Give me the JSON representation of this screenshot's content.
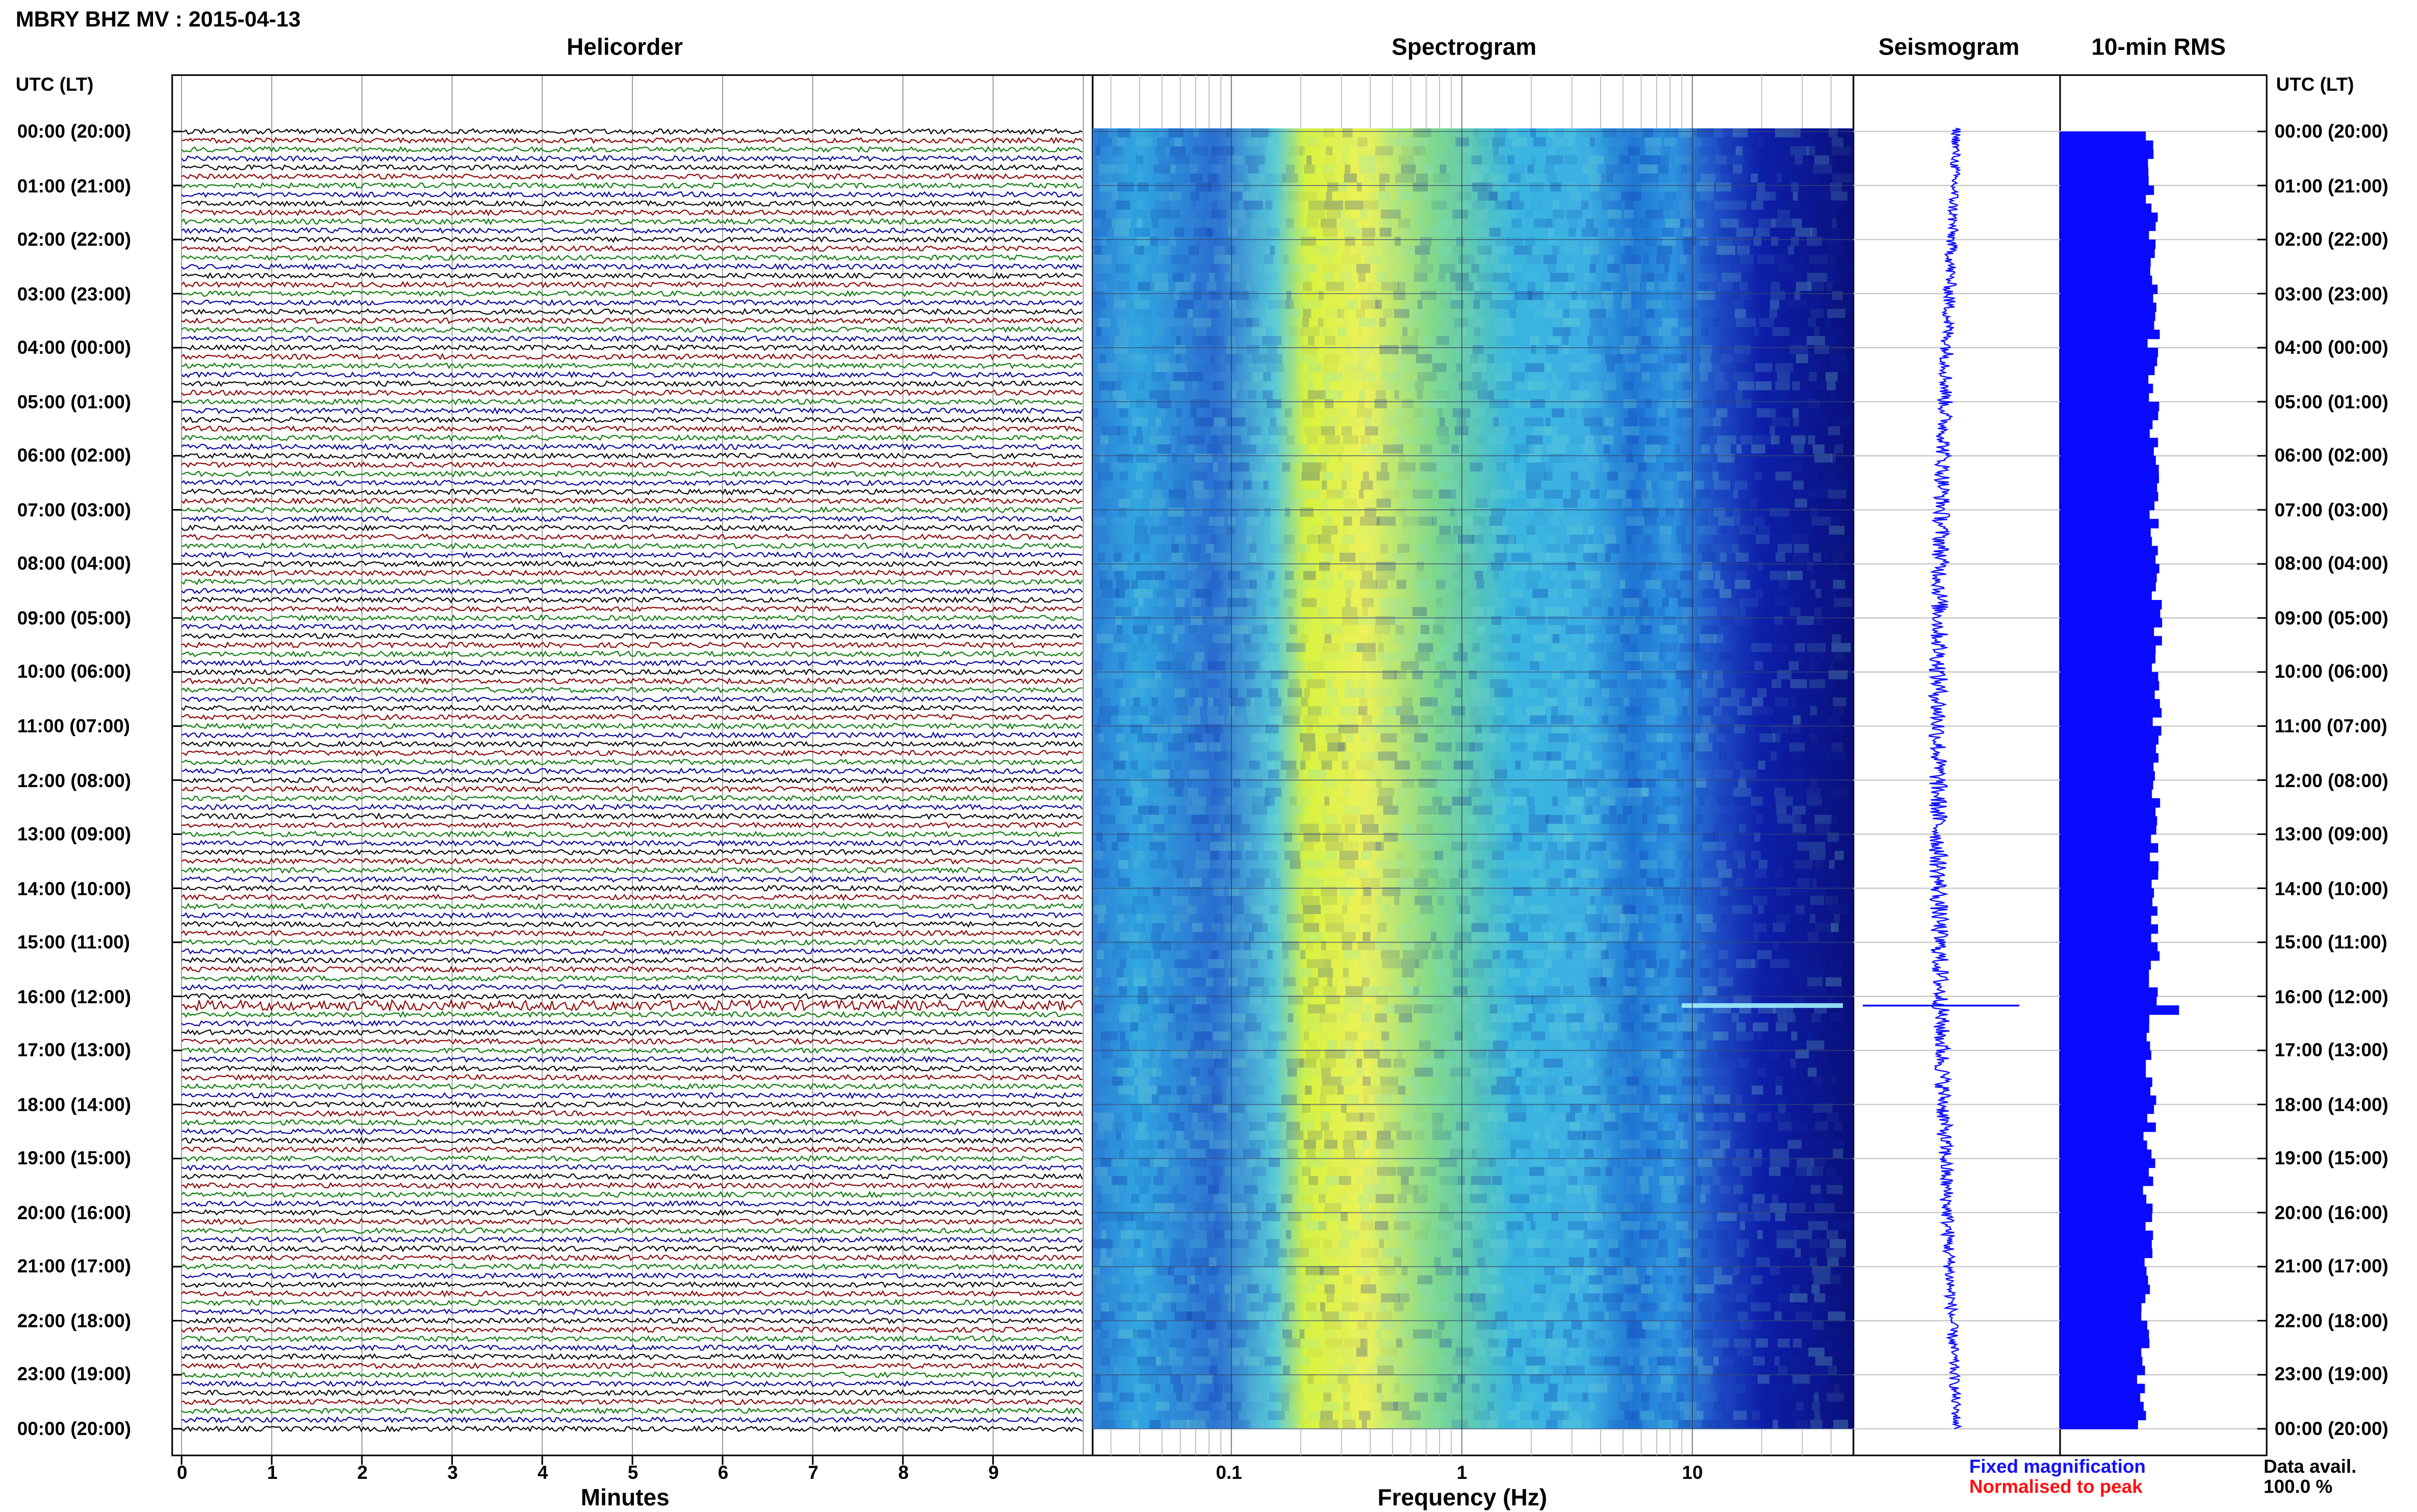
{
  "page": {
    "title": "MBRY BHZ MV : 2015-04-13",
    "utc_lt_label": "UTC (LT)"
  },
  "panels": {
    "helicorder": "Helicorder",
    "spectrogram": "Spectrogram",
    "seismogram": "Seismogram",
    "rms": "10-min RMS"
  },
  "axes": {
    "helicorder_xlabel": "Minutes",
    "spectrogram_xlabel": "Frequency (Hz)",
    "minute_ticks": [
      "0",
      "1",
      "2",
      "3",
      "4",
      "5",
      "6",
      "7",
      "8",
      "9"
    ],
    "frequency_ticks": [
      "0.1",
      "1",
      "10"
    ]
  },
  "time_labels": [
    "00:00 (20:00)",
    "01:00 (21:00)",
    "02:00 (22:00)",
    "03:00 (23:00)",
    "04:00 (00:00)",
    "05:00 (01:00)",
    "06:00 (02:00)",
    "07:00 (03:00)",
    "08:00 (04:00)",
    "09:00 (05:00)",
    "10:00 (06:00)",
    "11:00 (07:00)",
    "12:00 (08:00)",
    "13:00 (09:00)",
    "14:00 (10:00)",
    "15:00 (11:00)",
    "16:00 (12:00)",
    "17:00 (13:00)",
    "18:00 (14:00)",
    "19:00 (15:00)",
    "20:00 (16:00)",
    "21:00 (17:00)",
    "22:00 (18:00)",
    "23:00 (19:00)",
    "00:00 (20:00)"
  ],
  "legend": {
    "fixed": "Fixed magnification",
    "normalised": "Normalised to peak",
    "fixed_color": "#1010ff",
    "normalised_color": "#ff1010"
  },
  "availability": {
    "label": "Data avail.",
    "value": "100.0 %"
  },
  "colors": {
    "trace_cycle": [
      "#000000",
      "#8b0000",
      "#0a7a0a",
      "#0000a0"
    ],
    "seismogram": "#1010ff",
    "rms": "#0a0aff"
  },
  "chart_data": [
    {
      "type": "line",
      "title": "Helicorder",
      "xlabel": "Minutes",
      "xlim": [
        0,
        10
      ],
      "rows": 144,
      "row_minutes": 10,
      "notable_event": {
        "utc": "16:10",
        "minute_range": [
          0,
          10
        ]
      }
    },
    {
      "type": "heatmap",
      "title": "Spectrogram",
      "xlabel": "Frequency (Hz)",
      "xscale": "log",
      "xlim": [
        0.025,
        50
      ],
      "dominant_band_hz": [
        0.2,
        1.0
      ],
      "rows": 144
    },
    {
      "type": "line",
      "title": "Seismogram",
      "event_utc": "16:10"
    },
    {
      "type": "bar",
      "title": "10-min RMS",
      "orientation": "horizontal",
      "bins": 144,
      "peak_utc": "16:10"
    }
  ]
}
